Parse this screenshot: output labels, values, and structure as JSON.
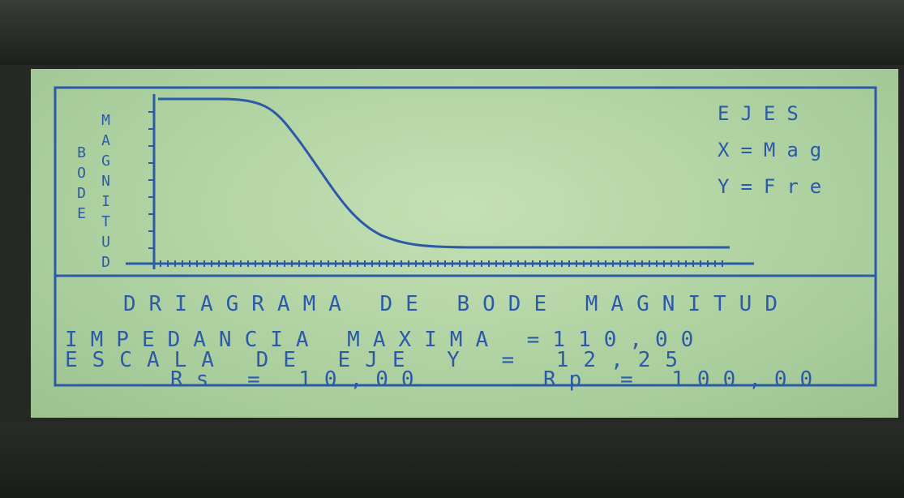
{
  "screen": {
    "vertical_labels": [
      "BODE",
      "MAGNITUD"
    ],
    "legend": {
      "title": "EJES",
      "lines": [
        "X=Mag",
        "Y=Fre"
      ]
    },
    "title": "DRIAGRAMA DE BODE MAGNITUD",
    "lines": [
      "IMPEDANCIA MAXIMA =110,00",
      "ESCALA DE EJE Y = 12,25"
    ],
    "params": [
      "Rs = 10,00",
      "Rp = 100,00"
    ]
  }
}
